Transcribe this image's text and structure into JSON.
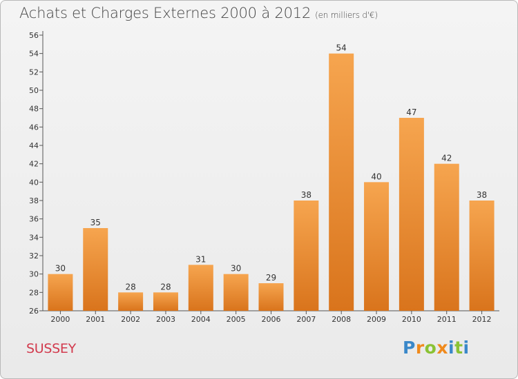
{
  "header": {
    "title": "Achats et Charges Externes 2000 à 2012",
    "subtitle": "(en milliers d'€)"
  },
  "footer": {
    "commune": "SUSSEY",
    "logo": [
      "P",
      "r",
      "o",
      "x",
      "i",
      "t",
      "i"
    ]
  },
  "colors": {
    "bar_light": "#f6a54f",
    "bar_dark": "#d9741c",
    "commune_text": "#d23a4d",
    "logo_letters": [
      "#3a88c9",
      "#f08a1c",
      "#8ac234",
      "#f08a1c",
      "#3a88c9",
      "#8ac234",
      "#3a88c9"
    ]
  },
  "chart_data": {
    "type": "bar",
    "title": "Achats et Charges Externes 2000 à 2012",
    "subtitle": "(en milliers d'€)",
    "categories": [
      "2000",
      "2001",
      "2002",
      "2003",
      "2004",
      "2005",
      "2006",
      "2007",
      "2008",
      "2009",
      "2010",
      "2011",
      "2012"
    ],
    "values": [
      30,
      35,
      28,
      28,
      31,
      30,
      29,
      38,
      54,
      40,
      47,
      42,
      38
    ],
    "ylim": [
      26,
      56
    ],
    "yticks": [
      26,
      28,
      30,
      32,
      34,
      36,
      38,
      40,
      42,
      44,
      46,
      48,
      50,
      52,
      54,
      56
    ],
    "grid": false,
    "data_labels": true
  }
}
